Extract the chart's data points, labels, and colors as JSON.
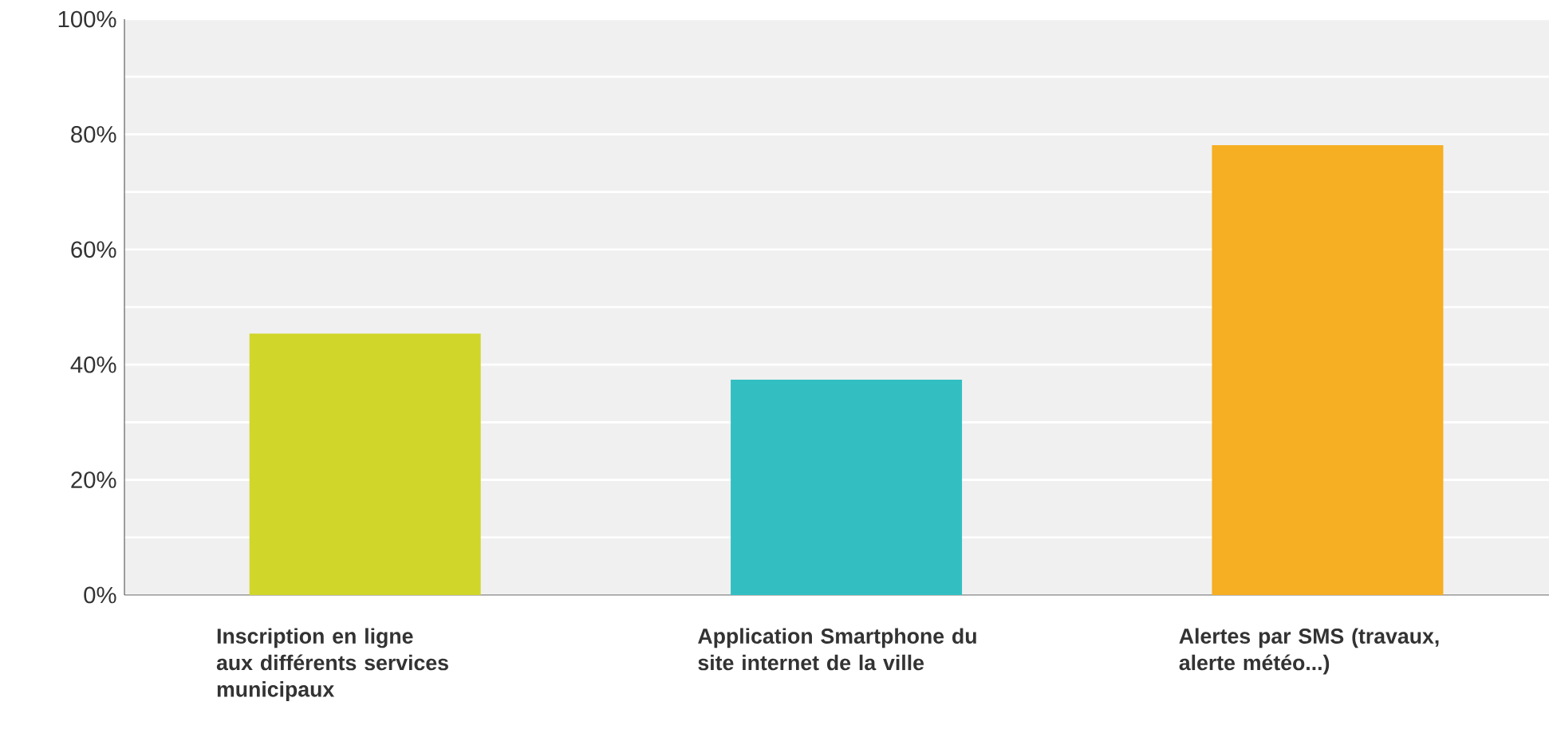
{
  "chart_data": {
    "type": "bar",
    "categories": [
      "Inscription en ligne aux différents services municipaux",
      "Application Smartphone du site internet de la ville",
      "Alertes par SMS (travaux, alerte météo...)"
    ],
    "values": [
      45.4,
      37.4,
      78.1
    ],
    "colors": [
      "#d0d62a",
      "#33bfc1",
      "#f6ae22"
    ],
    "ylim": [
      0,
      100
    ],
    "yticks": [
      {
        "value": 0,
        "label": "0%"
      },
      {
        "value": 10,
        "label": null
      },
      {
        "value": 20,
        "label": "20%"
      },
      {
        "value": 30,
        "label": null
      },
      {
        "value": 40,
        "label": "40%"
      },
      {
        "value": 50,
        "label": null
      },
      {
        "value": 60,
        "label": "60%"
      },
      {
        "value": 70,
        "label": null
      },
      {
        "value": 80,
        "label": "80%"
      },
      {
        "value": 90,
        "label": null
      },
      {
        "value": 100,
        "label": "100%"
      }
    ],
    "grid": "y"
  }
}
